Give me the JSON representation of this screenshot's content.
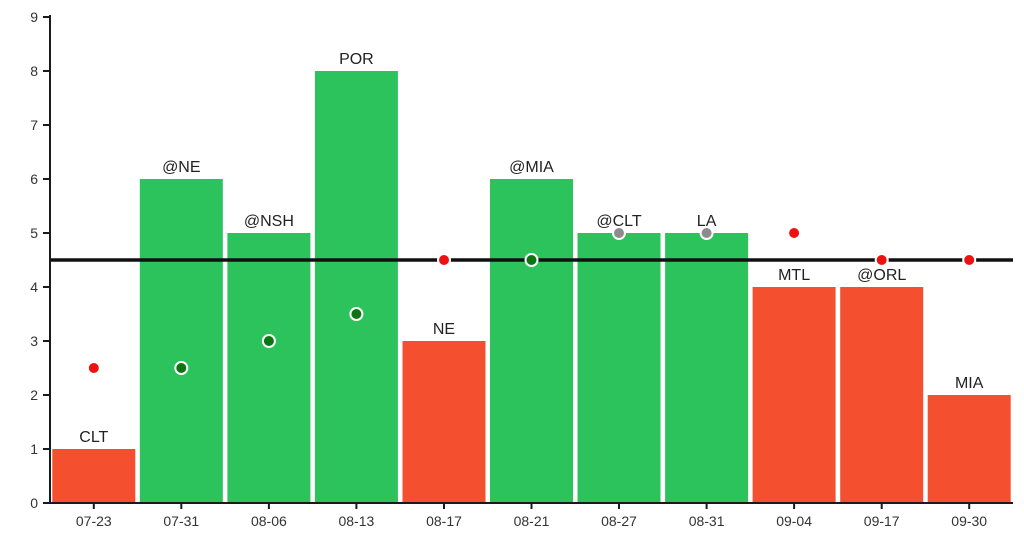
{
  "chart_data": {
    "type": "bar",
    "title": "",
    "xlabel": "",
    "ylabel": "",
    "ylim": [
      0,
      9
    ],
    "yticks": [
      0,
      1,
      2,
      3,
      4,
      5,
      6,
      7,
      8,
      9
    ],
    "grid": false,
    "legend": null,
    "reference_line": {
      "y": 4.5
    },
    "categories": [
      "07-23",
      "07-31",
      "08-06",
      "08-13",
      "08-17",
      "08-21",
      "08-27",
      "08-31",
      "09-04",
      "09-17",
      "09-30"
    ],
    "bars": [
      {
        "category": "07-23",
        "label": "CLT",
        "value": 1,
        "result": "win_color_no",
        "fill": "loss",
        "dot": {
          "value": 2.5,
          "color": "red"
        }
      },
      {
        "category": "07-31",
        "label": "@NE",
        "value": 6,
        "result": "win_color_yes",
        "fill": "win",
        "dot": {
          "value": 2.5,
          "color": "green"
        }
      },
      {
        "category": "08-06",
        "label": "@NSH",
        "value": 5,
        "result": "win_color_yes",
        "fill": "win",
        "dot": {
          "value": 3,
          "color": "green"
        }
      },
      {
        "category": "08-13",
        "label": "POR",
        "value": 8,
        "result": "win_color_yes",
        "fill": "win",
        "dot": {
          "value": 3.5,
          "color": "green"
        }
      },
      {
        "category": "08-17",
        "label": "NE",
        "value": 3,
        "result": "win_color_no",
        "fill": "loss",
        "dot": {
          "value": 4.5,
          "color": "red"
        }
      },
      {
        "category": "08-21",
        "label": "@MIA",
        "value": 6,
        "result": "win_color_yes",
        "fill": "win",
        "dot": {
          "value": 4.5,
          "color": "green"
        }
      },
      {
        "category": "08-27",
        "label": "@CLT",
        "value": 5,
        "result": "win_color_yes",
        "fill": "win",
        "dot": {
          "value": 5,
          "color": "gray"
        }
      },
      {
        "category": "08-31",
        "label": "LA",
        "value": 5,
        "result": "win_color_yes",
        "fill": "win",
        "dot": {
          "value": 5,
          "color": "gray"
        }
      },
      {
        "category": "09-04",
        "label": "MTL",
        "value": 4,
        "result": "win_color_no",
        "fill": "loss",
        "dot": {
          "value": 5,
          "color": "red"
        }
      },
      {
        "category": "09-17",
        "label": "@ORL",
        "value": 4,
        "result": "win_color_no",
        "fill": "loss",
        "dot": {
          "value": 4.5,
          "color": "red"
        }
      },
      {
        "category": "09-30",
        "label": "MIA",
        "value": 2,
        "result": "win_color_no",
        "fill": "loss",
        "dot": {
          "value": 4.5,
          "color": "red"
        }
      }
    ],
    "colors": {
      "win": "#2cc35c",
      "loss": "#f4502f",
      "dot_red": "#ee1111",
      "dot_green": "#0c7512",
      "dot_gray": "#8c8c8c",
      "dot_ring": "#ffffff",
      "axis": "#1a1a1a",
      "tick_label": "#333333",
      "bar_label": "#222222",
      "reference_line": "#111111",
      "background": "#ffffff"
    }
  }
}
